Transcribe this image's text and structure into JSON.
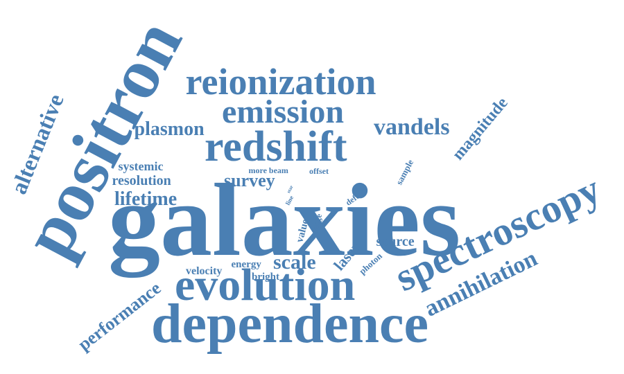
{
  "word_cloud": {
    "color": "#4a7fb3",
    "words": [
      {
        "id": "galaxies",
        "text": "galaxies"
      },
      {
        "id": "positron",
        "text": "positron"
      },
      {
        "id": "dependence",
        "text": "dependence"
      },
      {
        "id": "evolution",
        "text": "evolution"
      },
      {
        "id": "spectroscopy",
        "text": "spectroscopy"
      },
      {
        "id": "redshift",
        "text": "redshift"
      },
      {
        "id": "reionization",
        "text": "reionization"
      },
      {
        "id": "emission",
        "text": "emission"
      },
      {
        "id": "annihilation",
        "text": "annihilation"
      },
      {
        "id": "alternative",
        "text": "alternative"
      },
      {
        "id": "vandels",
        "text": "vandels"
      },
      {
        "id": "plasmon",
        "text": "plasmon"
      },
      {
        "id": "performance",
        "text": "performance"
      },
      {
        "id": "magnitude",
        "text": "magnitude"
      },
      {
        "id": "lifetime",
        "text": "lifetime"
      },
      {
        "id": "survey",
        "text": "survey"
      },
      {
        "id": "scale",
        "text": "scale"
      },
      {
        "id": "resolution",
        "text": "resolution"
      },
      {
        "id": "systemic",
        "text": "systemic"
      },
      {
        "id": "laser",
        "text": "laser"
      },
      {
        "id": "source",
        "text": "source"
      },
      {
        "id": "velocity",
        "text": "velocity"
      },
      {
        "id": "energy",
        "text": "energy"
      },
      {
        "id": "bright",
        "text": "bright"
      },
      {
        "id": "photon",
        "text": "photon"
      },
      {
        "id": "value",
        "text": "value"
      },
      {
        "id": "range",
        "text": "range"
      },
      {
        "id": "defect",
        "text": "defect"
      },
      {
        "id": "sample",
        "text": "sample"
      },
      {
        "id": "more-beam",
        "text": "more beam"
      },
      {
        "id": "offset",
        "text": "offset"
      },
      {
        "id": "line",
        "text": "line"
      },
      {
        "id": "star",
        "text": "star"
      }
    ]
  }
}
